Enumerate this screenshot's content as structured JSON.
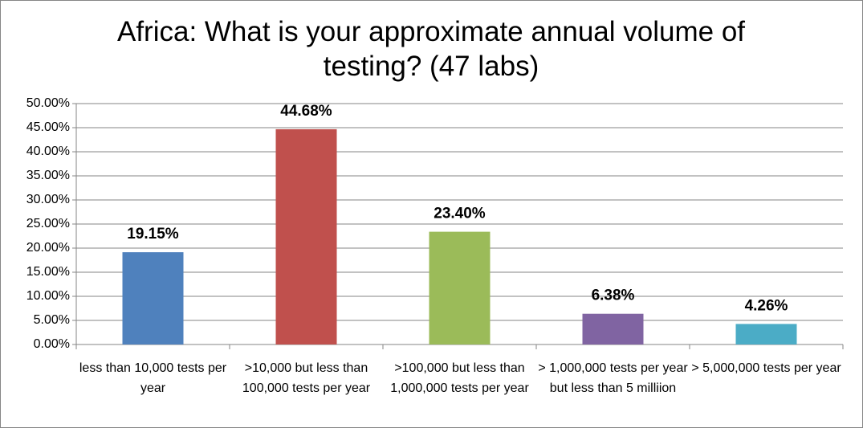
{
  "chart_data": {
    "type": "bar",
    "title": "Africa: What is your approximate annual volume of testing? (47 labs)",
    "categories": [
      "less than 10,000 tests per year",
      ">10,000 but less than 100,000 tests per year",
      ">100,000 but less than 1,000,000 tests per year",
      "> 1,000,000 tests per year but less than 5 milliion",
      "> 5,000,000 tests per year"
    ],
    "values": [
      19.15,
      44.68,
      23.4,
      6.38,
      4.26
    ],
    "value_labels": [
      "19.15%",
      "44.68%",
      "23.40%",
      "6.38%",
      "4.26%"
    ],
    "colors": [
      "#4f81bd",
      "#c0504d",
      "#9bbb59",
      "#8064a2",
      "#4bacc6"
    ],
    "ylim": [
      0,
      50
    ],
    "yticks": [
      {
        "value": 0,
        "label": "0.00%"
      },
      {
        "value": 5,
        "label": "5.00%"
      },
      {
        "value": 10,
        "label": "10.00%"
      },
      {
        "value": 15,
        "label": "15.00%"
      },
      {
        "value": 20,
        "label": "20.00%"
      },
      {
        "value": 25,
        "label": "25.00%"
      },
      {
        "value": 30,
        "label": "30.00%"
      },
      {
        "value": 35,
        "label": "35.00%"
      },
      {
        "value": 40,
        "label": "40.00%"
      },
      {
        "value": 45,
        "label": "45.00%"
      },
      {
        "value": 50,
        "label": "50.00%"
      }
    ],
    "grid": true
  }
}
